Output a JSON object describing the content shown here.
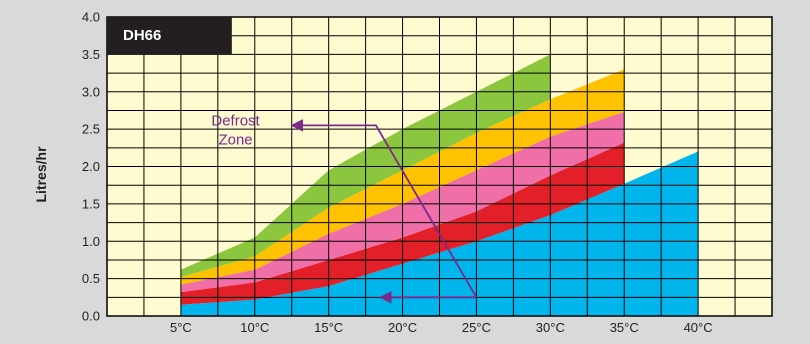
{
  "chart_data": {
    "type": "area",
    "badge": "DH66",
    "title": "",
    "xlabel": "",
    "ylabel": "Litres/hr",
    "categories": [
      "5°C",
      "10°C",
      "15°C",
      "20°C",
      "25°C",
      "30°C",
      "35°C",
      "40°C"
    ],
    "x": [
      5,
      10,
      15,
      20,
      25,
      30,
      35,
      40
    ],
    "ylim": [
      0,
      4
    ],
    "yticks": [
      "0.0",
      "0.5",
      "1.0",
      "1.5",
      "2.0",
      "2.5",
      "3.0",
      "3.5",
      "4.0"
    ],
    "grid": true,
    "series": [
      {
        "color": "#00b5ec",
        "x": [
          5,
          10,
          15,
          20,
          25,
          30,
          35,
          40
        ],
        "lower": [
          0,
          0,
          0,
          0,
          0,
          0,
          0,
          0
        ],
        "upper": [
          0.15,
          0.22,
          0.4,
          0.7,
          1.0,
          1.35,
          1.77,
          2.2
        ]
      },
      {
        "color": "#e3202a",
        "x": [
          5,
          10,
          15,
          20,
          25,
          30,
          35
        ],
        "lower": [
          0.15,
          0.22,
          0.4,
          0.7,
          1.0,
          1.35,
          1.77
        ],
        "upper": [
          0.32,
          0.45,
          0.75,
          1.05,
          1.4,
          1.88,
          2.32
        ]
      },
      {
        "color": "#f06fa8",
        "x": [
          5,
          10,
          15,
          20,
          25,
          30,
          35
        ],
        "lower": [
          0.32,
          0.45,
          0.75,
          1.05,
          1.4,
          1.88,
          2.32
        ],
        "upper": [
          0.42,
          0.62,
          1.1,
          1.5,
          1.95,
          2.4,
          2.73
        ]
      },
      {
        "color": "#ffc200",
        "x": [
          5,
          10,
          15,
          20,
          25,
          30,
          35
        ],
        "lower": [
          0.42,
          0.62,
          1.1,
          1.5,
          1.95,
          2.4,
          2.73
        ],
        "upper": [
          0.52,
          0.8,
          1.45,
          1.95,
          2.45,
          2.9,
          3.3
        ]
      },
      {
        "color": "#8cc63e",
        "x": [
          5,
          10,
          15,
          20,
          25,
          30
        ],
        "lower": [
          0.52,
          0.8,
          1.45,
          1.95,
          2.45,
          2.9
        ],
        "upper": [
          0.62,
          1.05,
          1.95,
          2.5,
          3.0,
          3.5
        ]
      }
    ],
    "annotations": [
      {
        "text_lines": [
          "Defrost",
          "Zone"
        ],
        "color": "#7a2a8a",
        "text_at": [
          8.7,
          2.55
        ],
        "path": [
          [
            25.0,
            0.25
          ],
          [
            18.2,
            2.55
          ],
          [
            12.5,
            2.55
          ]
        ],
        "arrow_to": [
          18.5,
          0.25
        ]
      }
    ]
  }
}
